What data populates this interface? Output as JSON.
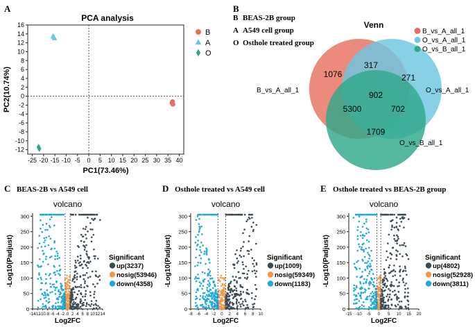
{
  "panels": {
    "A": {
      "letter": "A"
    },
    "B": {
      "letter": "B",
      "groups": [
        {
          "key": "B",
          "desc": "BEAS-2B group"
        },
        {
          "key": "A",
          "desc": "A549 cell group"
        },
        {
          "key": "O",
          "desc": "Osthole treated group"
        }
      ]
    },
    "C": {
      "letter": "C",
      "heading": "BEAS-2B vs A549 cell"
    },
    "D": {
      "letter": "D",
      "heading": "Osthole treated vs A549 cell"
    },
    "E": {
      "letter": "E",
      "heading": "Osthole treated vs BEAS-2B group"
    }
  },
  "colors": {
    "B": "#e8705f",
    "A": "#6ec6e0",
    "O": "#2ea88b",
    "up": "#3a4a52",
    "nosig": "#f29a4a",
    "down": "#1fa8dc"
  },
  "chart_data": [
    {
      "id": "pca",
      "type": "scatter",
      "title": "PCA analysis",
      "xlabel": "PC1(73.46%)",
      "ylabel": "PC2(10.74%)",
      "xlim": [
        -27,
        42
      ],
      "ylim": [
        -13,
        16
      ],
      "xticks": [
        -25,
        -20,
        -15,
        -10,
        -5,
        0,
        5,
        10,
        15,
        20,
        25,
        30,
        35,
        40
      ],
      "yticks": [
        -12,
        -10,
        -8,
        -6,
        -4,
        -2,
        0,
        2,
        4,
        6,
        8,
        10,
        12,
        14,
        16
      ],
      "series": [
        {
          "name": "B",
          "marker": "circle",
          "points": [
            [
              37,
              -1.2
            ],
            [
              37.2,
              -1.8
            ],
            [
              36.8,
              -1.5
            ]
          ]
        },
        {
          "name": "A",
          "marker": "triangle",
          "points": [
            [
              -15.5,
              13.3
            ],
            [
              -15.2,
              13.0
            ],
            [
              -15.8,
              13.5
            ]
          ]
        },
        {
          "name": "O",
          "marker": "diamond",
          "points": [
            [
              -22,
              -11.6
            ],
            [
              -22.2,
              -11.4
            ],
            [
              -21.9,
              -11.8
            ]
          ]
        }
      ]
    },
    {
      "id": "venn",
      "type": "venn",
      "title": "Venn",
      "sets": [
        "B_vs_A_all_1",
        "O_vs_A_all_1",
        "O_vs_B_all_1"
      ],
      "regions": {
        "B_only": 1076,
        "O_vs_A_only": 271,
        "O_vs_B_only": 1709,
        "B_and_OA": 317,
        "B_and_OB": 5300,
        "OA_and_OB": 702,
        "all": 902
      }
    },
    {
      "id": "volcano_C",
      "type": "scatter",
      "title": "volcano",
      "xlabel": "Log2FC",
      "ylabel": "-Log10(Padjust)",
      "xlim": [
        -14,
        14
      ],
      "ylim": [
        0,
        310
      ],
      "xticks": [
        -14,
        -12,
        -10,
        -8,
        -6,
        -4,
        -2,
        0,
        2,
        4,
        6,
        8,
        10,
        12,
        14
      ],
      "yticks": [
        0,
        50,
        100,
        150,
        200,
        250,
        300
      ],
      "legend_title": "Significant",
      "series": [
        {
          "name": "up",
          "count": 3237
        },
        {
          "name": "nosig",
          "count": 53946
        },
        {
          "name": "down",
          "count": 4358
        }
      ]
    },
    {
      "id": "volcano_D",
      "type": "scatter",
      "title": "volcano",
      "xlabel": "Log2FC",
      "ylabel": "-Log10(Padjust)",
      "xlim": [
        -8,
        10
      ],
      "ylim": [
        0,
        310
      ],
      "xticks": [
        -8,
        -6,
        -4,
        -2,
        0,
        2,
        4,
        6,
        8,
        10
      ],
      "yticks": [
        0,
        50,
        100,
        150,
        200,
        250,
        300
      ],
      "legend_title": "Significant",
      "series": [
        {
          "name": "up",
          "count": 1009
        },
        {
          "name": "nosig",
          "count": 59349
        },
        {
          "name": "down",
          "count": 1183
        }
      ]
    },
    {
      "id": "volcano_E",
      "type": "scatter",
      "title": "volcano",
      "xlabel": "Log2FC",
      "ylabel": "-Log10(Padjust)",
      "xlim": [
        -15,
        20
      ],
      "ylim": [
        0,
        310
      ],
      "xticks": [
        -15,
        -10,
        -5,
        0,
        5,
        10,
        15,
        20
      ],
      "yticks": [
        0,
        50,
        100,
        150,
        200,
        250,
        300
      ],
      "legend_title": "Significant",
      "series": [
        {
          "name": "up",
          "count": 4802
        },
        {
          "name": "nosig",
          "count": 52928
        },
        {
          "name": "down",
          "count": 3811
        }
      ]
    }
  ]
}
